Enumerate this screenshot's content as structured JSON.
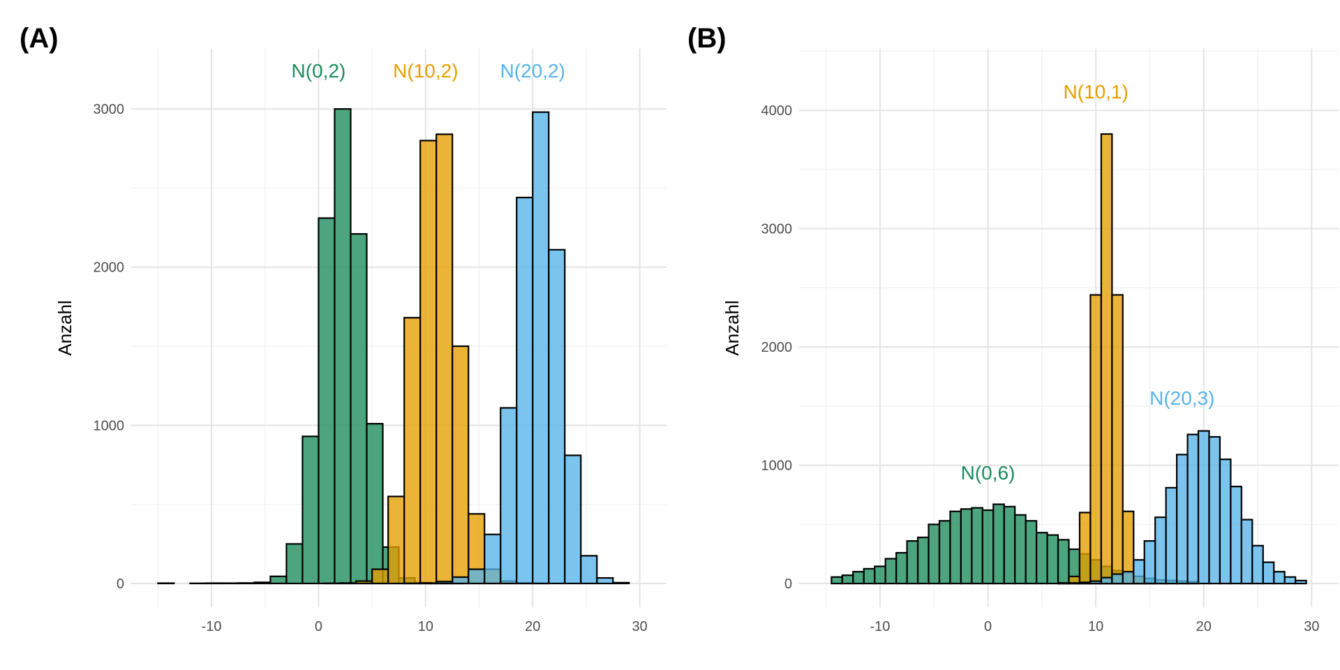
{
  "colors": {
    "green": "#1a8c5b",
    "orange": "#e69f00",
    "blue": "#56b4e9"
  },
  "chart_data": [
    {
      "type": "bar",
      "panel_label": "(A)",
      "ylabel": "Anzahl",
      "xlabel": "",
      "xlim": [
        -17.5,
        32.5
      ],
      "ylim": [
        -150,
        3380
      ],
      "x_ticks": [
        -10,
        0,
        10,
        20,
        30
      ],
      "x_tick_labels": [
        "-10",
        "0",
        "10",
        "20",
        "30"
      ],
      "y_ticks": [
        0,
        1000,
        2000,
        3000
      ],
      "y_tick_labels": [
        "0",
        "1000",
        "2000",
        "3000"
      ],
      "grid": true,
      "bin_width": 1.5,
      "series": [
        {
          "color_key": "green",
          "bins_start": -15,
          "values": [
            2,
            0,
            1,
            2,
            2,
            3,
            7,
            45,
            250,
            930,
            2310,
            3000,
            2210,
            1010,
            230,
            35,
            5,
            2,
            1,
            0
          ]
        },
        {
          "color_key": "orange",
          "bins_start": 0.5,
          "values": [
            1,
            3,
            15,
            90,
            550,
            1680,
            2800,
            2840,
            1500,
            440,
            90,
            15,
            3,
            1
          ]
        },
        {
          "color_key": "blue",
          "bins_start": 8,
          "values": [
            1,
            3,
            12,
            40,
            90,
            310,
            1110,
            2440,
            2980,
            2110,
            810,
            175,
            35,
            5
          ]
        }
      ],
      "annotations": [
        {
          "text": "N(0,2)",
          "x": 0,
          "y": 3200,
          "color_key": "green"
        },
        {
          "text": "N(10,2)",
          "x": 10,
          "y": 3200,
          "color_key": "orange"
        },
        {
          "text": "N(20,2)",
          "x": 20,
          "y": 3200,
          "color_key": "blue"
        }
      ]
    },
    {
      "type": "bar",
      "panel_label": "(B)",
      "ylabel": "Anzahl",
      "xlabel": "",
      "xlim": [
        -17.5,
        32.5
      ],
      "ylim": [
        -200,
        4520
      ],
      "x_ticks": [
        -10,
        0,
        10,
        20,
        30
      ],
      "x_tick_labels": [
        "-10",
        "0",
        "10",
        "20",
        "30"
      ],
      "y_ticks": [
        0,
        1000,
        2000,
        3000,
        4000
      ],
      "y_tick_labels": [
        "0",
        "1000",
        "2000",
        "3000",
        "4000"
      ],
      "grid": true,
      "bin_width": 1,
      "series": [
        {
          "color_key": "green",
          "bins_start": -14.5,
          "values": [
            55,
            70,
            100,
            125,
            145,
            210,
            260,
            360,
            390,
            500,
            530,
            610,
            630,
            640,
            620,
            670,
            650,
            580,
            530,
            430,
            410,
            370,
            290,
            250,
            200,
            145,
            110,
            80,
            60,
            45,
            30,
            25,
            20,
            15
          ]
        },
        {
          "color_key": "orange",
          "bins_start": 6.5,
          "values": [
            5,
            60,
            600,
            2440,
            3800,
            2440,
            610,
            60,
            5
          ]
        },
        {
          "color_key": "blue",
          "bins_start": 6.5,
          "values": [
            1,
            5,
            10,
            20,
            50,
            80,
            100,
            200,
            360,
            560,
            810,
            1090,
            1260,
            1290,
            1240,
            1050,
            820,
            540,
            320,
            180,
            100,
            55,
            25
          ]
        }
      ],
      "annotations": [
        {
          "text": "N(0,6)",
          "x": 0,
          "y": 880,
          "color_key": "green"
        },
        {
          "text": "N(10,1)",
          "x": 10,
          "y": 4100,
          "color_key": "orange"
        },
        {
          "text": "N(20,3)",
          "x": 18,
          "y": 1510,
          "color_key": "blue"
        }
      ]
    }
  ]
}
